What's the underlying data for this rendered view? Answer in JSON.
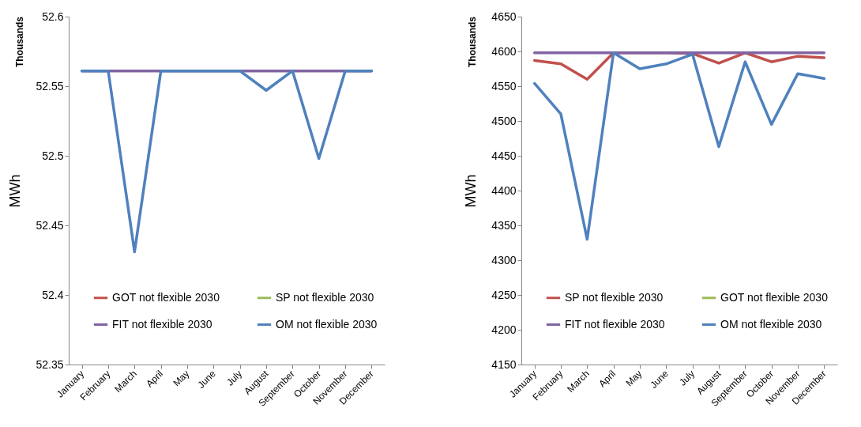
{
  "chart_data": [
    {
      "type": "line",
      "ylabel": "MWh",
      "annotations": [
        "Thousands"
      ],
      "categories": [
        "January",
        "February",
        "March",
        "April",
        "May",
        "June",
        "July",
        "August",
        "September",
        "October",
        "November",
        "December"
      ],
      "ylim": [
        52.35,
        52.6
      ],
      "yticks": [
        52.35,
        52.4,
        52.45,
        52.5,
        52.55,
        52.6
      ],
      "grid": false,
      "legend": "bottom",
      "marker": "none",
      "line_style": "solid",
      "series": [
        {
          "name": "GOT not flexible 2030",
          "color": "#c0504d",
          "values": [
            null,
            null,
            null,
            null,
            null,
            null,
            null,
            null,
            null,
            null,
            null,
            null
          ]
        },
        {
          "name": "SP not flexible 2030",
          "color": "#9bbb59",
          "values": [
            null,
            null,
            null,
            null,
            null,
            null,
            null,
            null,
            null,
            null,
            null,
            null
          ]
        },
        {
          "name": "FIT not flexible 2030",
          "color": "#8064a2",
          "values": [
            52.561,
            52.561,
            52.561,
            52.561,
            52.561,
            52.561,
            52.561,
            52.561,
            52.561,
            52.561,
            52.561,
            52.561
          ]
        },
        {
          "name": "OM not flexible 2030",
          "color": "#4f81bd",
          "values": [
            52.561,
            52.561,
            52.431,
            52.561,
            52.561,
            52.561,
            52.561,
            52.547,
            52.561,
            52.498,
            52.561,
            52.561
          ]
        }
      ]
    },
    {
      "type": "line",
      "ylabel": "MWh",
      "annotations": [
        "Thousands"
      ],
      "categories": [
        "January",
        "February",
        "March",
        "April",
        "May",
        "June",
        "July",
        "August",
        "September",
        "October",
        "November",
        "December"
      ],
      "ylim": [
        4150,
        4650
      ],
      "yticks": [
        4150,
        4200,
        4250,
        4300,
        4350,
        4400,
        4450,
        4500,
        4550,
        4600,
        4650
      ],
      "grid": false,
      "legend": "bottom",
      "marker": "none",
      "line_style": "solid",
      "series": [
        {
          "name": "SP not flexible 2030",
          "color": "#c0504d",
          "values": [
            4587,
            4582,
            4560,
            4598,
            4598,
            4598,
            4597,
            4583,
            4598,
            4585,
            4593,
            4591
          ]
        },
        {
          "name": "GOT not flexible 2030",
          "color": "#9bbb59",
          "values": [
            null,
            null,
            null,
            null,
            null,
            null,
            null,
            null,
            null,
            null,
            null,
            null
          ]
        },
        {
          "name": "FIT not flexible 2030",
          "color": "#8064a2",
          "values": [
            4598,
            4598,
            4598,
            4598,
            4598,
            4598,
            4598,
            4598,
            4598,
            4598,
            4598,
            4598
          ]
        },
        {
          "name": "OM not flexible 2030",
          "color": "#4f81bd",
          "values": [
            4554,
            4510,
            4330,
            4598,
            4575,
            4582,
            4596,
            4463,
            4585,
            4495,
            4568,
            4561
          ]
        }
      ]
    }
  ]
}
